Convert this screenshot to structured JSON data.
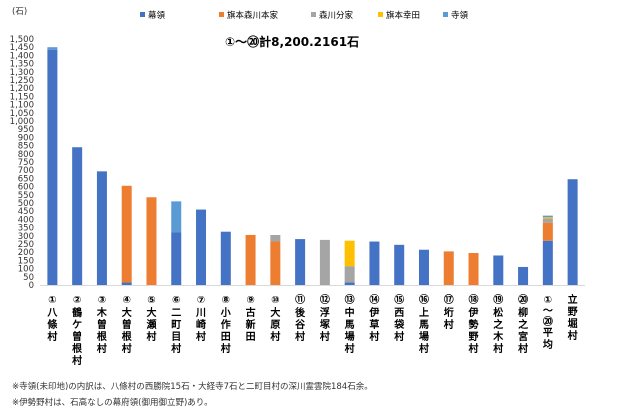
{
  "chart_data": {
    "type": "bar",
    "stacked": true,
    "unit_label": "(石)",
    "annotation": "①～⑳計8,200.2161石",
    "ylim": [
      0,
      1500
    ],
    "yticks": [
      "0",
      "50",
      "100",
      "150",
      "200",
      "250",
      "300",
      "350",
      "400",
      "450",
      "500",
      "550",
      "600",
      "650",
      "700",
      "750",
      "800",
      "850",
      "900",
      "950",
      "1,000",
      "1,050",
      "1,100",
      "1,150",
      "1,200",
      "1,250",
      "1,300",
      "1,350",
      "1,400",
      "1,450",
      "1,500"
    ],
    "grid": false,
    "legend_position": "top",
    "categories": [
      {
        "num": "①",
        "name": "八條村"
      },
      {
        "num": "②",
        "name": "鶴ケ曽根村"
      },
      {
        "num": "③",
        "name": "木曽根村"
      },
      {
        "num": "④",
        "name": "大曽根村"
      },
      {
        "num": "⑤",
        "name": "大瀬村"
      },
      {
        "num": "⑥",
        "name": "二町目村"
      },
      {
        "num": "⑦",
        "name": "川崎村"
      },
      {
        "num": "⑧",
        "name": "小作田村"
      },
      {
        "num": "⑨",
        "name": "古新田"
      },
      {
        "num": "⑩",
        "name": "大原村"
      },
      {
        "num": "⑪",
        "name": "後谷村"
      },
      {
        "num": "⑫",
        "name": "浮塚村"
      },
      {
        "num": "⑬",
        "name": "中馬場村"
      },
      {
        "num": "⑭",
        "name": "伊草村"
      },
      {
        "num": "⑮",
        "name": "西袋村"
      },
      {
        "num": "⑯",
        "name": "上馬場村"
      },
      {
        "num": "⑰",
        "name": "垳村"
      },
      {
        "num": "⑱",
        "name": "伊勢野村"
      },
      {
        "num": "⑲",
        "name": "松之木村"
      },
      {
        "num": "⑳",
        "name": "柳之宮村"
      },
      {
        "num": "①～⑳",
        "name": "平均"
      },
      {
        "num": "",
        "name": "立野堀村"
      }
    ],
    "series": [
      {
        "name": "幕領",
        "color": "#4472C4",
        "values": [
          1435,
          840,
          693,
          15,
          0,
          320,
          460,
          325,
          0,
          0,
          280,
          0,
          15,
          265,
          245,
          215,
          0,
          0,
          180,
          110,
          270,
          645
        ]
      },
      {
        "name": "旗本森川本家",
        "color": "#ED7D31",
        "values": [
          0,
          0,
          0,
          590,
          535,
          0,
          0,
          0,
          305,
          265,
          0,
          0,
          0,
          0,
          0,
          0,
          205,
          195,
          0,
          0,
          110,
          0
        ]
      },
      {
        "name": "森川分家",
        "color": "#A5A5A5",
        "values": [
          0,
          0,
          0,
          0,
          0,
          0,
          0,
          0,
          0,
          40,
          0,
          275,
          100,
          0,
          0,
          0,
          0,
          0,
          0,
          0,
          25,
          0
        ]
      },
      {
        "name": "旗本幸田",
        "color": "#FFC000",
        "values": [
          0,
          0,
          0,
          0,
          0,
          0,
          0,
          0,
          0,
          0,
          0,
          0,
          155,
          0,
          0,
          0,
          0,
          0,
          0,
          0,
          8,
          0
        ]
      },
      {
        "name": "寺領",
        "color": "#5B9BD5",
        "values": [
          15,
          0,
          0,
          0,
          0,
          190,
          0,
          0,
          0,
          0,
          0,
          0,
          0,
          0,
          0,
          0,
          0,
          0,
          0,
          0,
          10,
          0
        ]
      }
    ]
  },
  "notes": [
    "※寺領(未印地)の内訳は、八條村の西勝院15石・大経寺7石と二町目村の深川霊雲院184石余。",
    "※伊勢野村は、石高なしの幕府領(御用御立野)あり。"
  ]
}
